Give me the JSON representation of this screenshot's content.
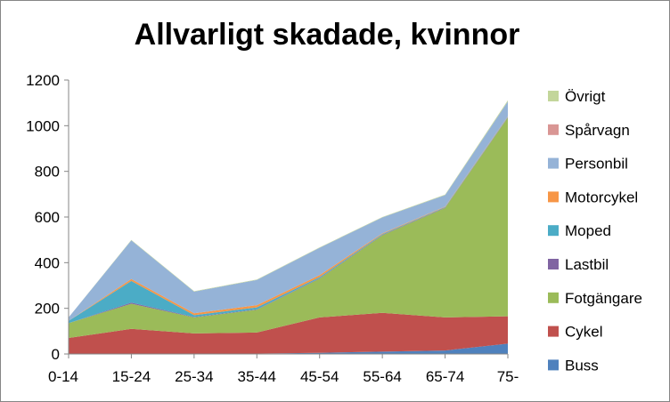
{
  "chart_data": {
    "type": "area",
    "stacked": true,
    "title": "Allvarligt skadade, kvinnor",
    "xlabel": "",
    "ylabel": "",
    "categories": [
      "0-14",
      "15-24",
      "25-34",
      "35-44",
      "45-54",
      "55-64",
      "65-74",
      "75-"
    ],
    "ylim": [
      0,
      1200
    ],
    "yticks": [
      0,
      200,
      400,
      600,
      800,
      1000,
      1200
    ],
    "grid": false,
    "legend_position": "right",
    "series": [
      {
        "name": "Buss",
        "color": "#4f81bd",
        "values": [
          2,
          2,
          2,
          2,
          5,
          10,
          15,
          45
        ]
      },
      {
        "name": "Cykel",
        "color": "#c0504d",
        "values": [
          68,
          108,
          88,
          92,
          155,
          170,
          145,
          120
        ]
      },
      {
        "name": "Fotgängare",
        "color": "#9bbb59",
        "values": [
          65,
          110,
          70,
          100,
          170,
          340,
          480,
          870
        ]
      },
      {
        "name": "Lastbil",
        "color": "#8064a2",
        "values": [
          0,
          5,
          2,
          2,
          2,
          2,
          2,
          2
        ]
      },
      {
        "name": "Moped",
        "color": "#4bacc6",
        "values": [
          10,
          95,
          8,
          8,
          5,
          3,
          2,
          2
        ]
      },
      {
        "name": "Motorcykel",
        "color": "#f79646",
        "values": [
          0,
          8,
          8,
          10,
          8,
          3,
          2,
          2
        ]
      },
      {
        "name": "Personbil",
        "color": "#95b3d7",
        "values": [
          15,
          170,
          95,
          110,
          120,
          70,
          50,
          65
        ]
      },
      {
        "name": "Spårvagn",
        "color": "#d99694",
        "values": [
          0,
          0,
          0,
          0,
          0,
          0,
          0,
          0
        ]
      },
      {
        "name": "Övrigt",
        "color": "#c3d69b",
        "values": [
          0,
          2,
          2,
          2,
          2,
          2,
          2,
          5
        ]
      }
    ]
  }
}
